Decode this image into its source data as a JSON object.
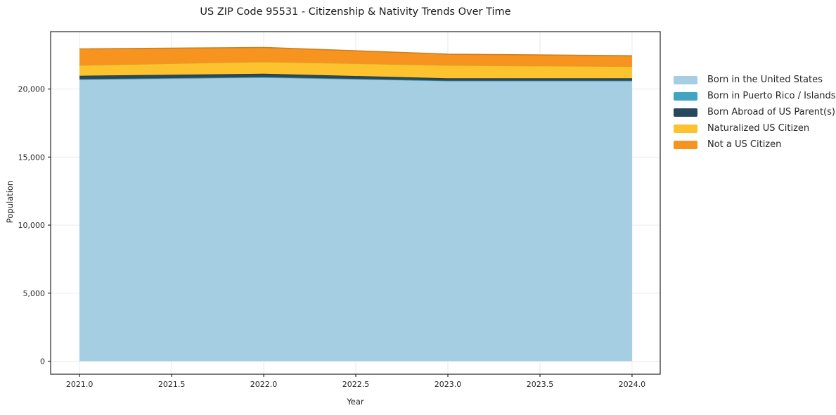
{
  "chart_data": {
    "type": "area",
    "stacked": true,
    "title": "US ZIP Code 95531 - Citizenship & Nativity Trends Over Time",
    "xlabel": "Year",
    "ylabel": "Population",
    "x": [
      2021,
      2022,
      2023,
      2024
    ],
    "series": [
      {
        "name": "Born in the United States",
        "color": "#a6cee3",
        "values": [
          20700,
          20850,
          20600,
          20600
        ]
      },
      {
        "name": "Born in Puerto Rico / Islands",
        "color": "#41a5c2",
        "values": [
          25,
          30,
          20,
          20
        ]
      },
      {
        "name": "Born Abroad of US Parent(s)",
        "color": "#28495c",
        "values": [
          250,
          250,
          170,
          170
        ]
      },
      {
        "name": "Naturalized US Citizen",
        "color": "#fcc32f",
        "values": [
          775,
          880,
          960,
          870
        ]
      },
      {
        "name": "Not a US Citizen",
        "color": "#f79420",
        "values": [
          1200,
          1040,
          810,
          780
        ]
      }
    ],
    "totals": [
      22950,
      23050,
      22560,
      22440
    ],
    "xticks": [
      2021.0,
      2021.5,
      2022.0,
      2022.5,
      2023.0,
      2023.5,
      2024.0
    ],
    "xtick_labels": [
      "2021.0",
      "2021.5",
      "2022.0",
      "2022.5",
      "2023.0",
      "2023.5",
      "2024.0"
    ],
    "yticks": [
      0,
      5000,
      10000,
      15000,
      20000
    ],
    "ytick_labels": [
      "0",
      "5,000",
      "10,000",
      "15,000",
      "20,000"
    ],
    "xlim": [
      2020.843,
      2024.153
    ],
    "ylim": [
      -956,
      24215
    ],
    "grid": true,
    "grid_color": "#e7e7e7",
    "axis_color": "#262626",
    "legend_position": "right-outside"
  }
}
